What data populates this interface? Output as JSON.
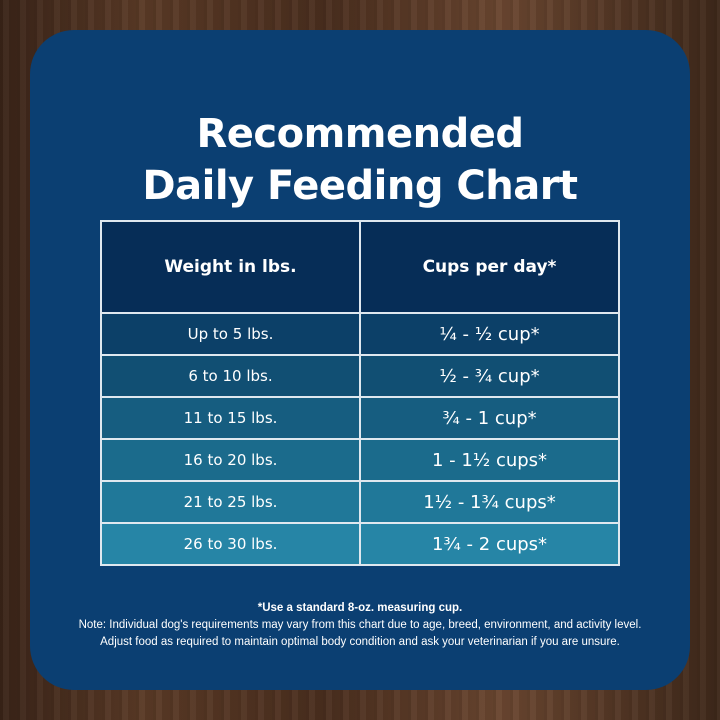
{
  "title_line1": "Recommended",
  "title_line2": "Daily Feeding Chart",
  "table": {
    "headers": [
      "Weight in lbs.",
      "Cups per day*"
    ],
    "rows": [
      [
        "Up to 5 lbs.",
        "¼ - ½ cup*"
      ],
      [
        "6 to 10 lbs.",
        "½ - ¾ cup*"
      ],
      [
        "11 to 15 lbs.",
        "¾ - 1 cup*"
      ],
      [
        "16 to 20 lbs.",
        "1 - 1½ cups*"
      ],
      [
        "21 to 25 lbs.",
        "1½ - 1¾ cups*"
      ],
      [
        "26 to 30 lbs.",
        "1¾ - 2 cups*"
      ]
    ],
    "row_colors": [
      "#0c4068",
      "#114f73",
      "#165d80",
      "#1b6b8c",
      "#207899",
      "#2685a6"
    ]
  },
  "notes": {
    "measure": "*Use a standard 8-oz. measuring cup.",
    "line1": "Note: Individual dog's requirements may vary from this chart due to age, breed, environment, and activity level.",
    "line2": "Adjust food as required to maintain optimal body condition and ask your veterinarian if you are unsure."
  },
  "colors": {
    "panel": "#0b3f72",
    "header": "#062d57",
    "background": "wood-brown"
  }
}
